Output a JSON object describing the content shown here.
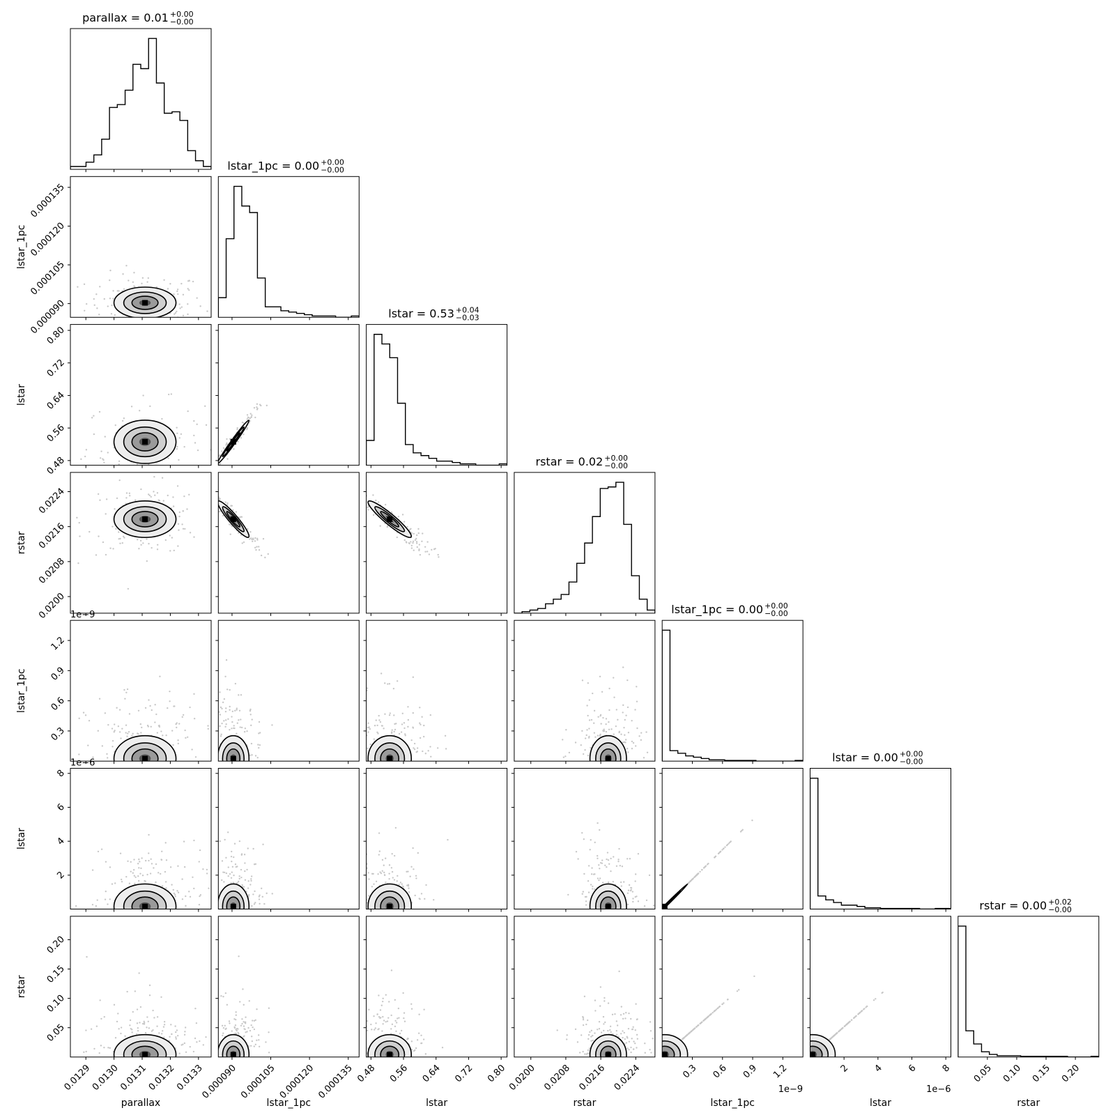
{
  "chart_data": {
    "type": "corner",
    "parameters": [
      "parallax",
      "lstar_1pc",
      "lstar",
      "rstar",
      "lstar_1pc",
      "lstar",
      "rstar"
    ],
    "titles": [
      {
        "name": "parallax",
        "value": "0.01",
        "plus": "+0.00",
        "minus": "−0.00"
      },
      {
        "name": "lstar_1pc",
        "value": "0.00",
        "plus": "+0.00",
        "minus": "−0.00"
      },
      {
        "name": "lstar",
        "value": "0.53",
        "plus": "+0.04",
        "minus": "−0.03"
      },
      {
        "name": "rstar",
        "value": "0.02",
        "plus": "+0.00",
        "minus": "−0.00"
      },
      {
        "name": "lstar_1pc",
        "value": "0.00",
        "plus": "+0.00",
        "minus": "−0.00"
      },
      {
        "name": "lstar",
        "value": "0.00",
        "plus": "+0.00",
        "minus": "−0.00"
      },
      {
        "name": "rstar",
        "value": "0.00",
        "plus": "+0.02",
        "minus": "−0.00"
      }
    ],
    "ranges": [
      [
        0.012845,
        0.013345
      ],
      [
        8.47e-05,
        0.0001392
      ],
      [
        0.4685,
        0.8145
      ],
      [
        0.01962,
        0.02284
      ],
      [
        0.0,
        1.4e-09
      ],
      [
        0.0,
        8.3e-06
      ],
      [
        0.0,
        0.24
      ]
    ],
    "ticks": [
      [
        0.0129,
        0.013,
        0.0131,
        0.0132,
        0.0133
      ],
      [
        9e-05,
        0.000105,
        0.00012,
        0.000135
      ],
      [
        0.48,
        0.56,
        0.64,
        0.72,
        0.8
      ],
      [
        0.02,
        0.0208,
        0.0216,
        0.0224
      ],
      [
        3e-10,
        6e-10,
        9e-10,
        1.2e-09
      ],
      [
        2e-06,
        4e-06,
        6e-06,
        8e-06
      ],
      [
        0.05,
        0.1,
        0.15,
        0.2
      ]
    ],
    "tick_labels": [
      [
        "0.0129",
        "0.0130",
        "0.0131",
        "0.0132",
        "0.0133"
      ],
      [
        "0.000090",
        "0.000105",
        "0.000120",
        "0.000135"
      ],
      [
        "0.48",
        "0.56",
        "0.64",
        "0.72",
        "0.80"
      ],
      [
        "0.0200",
        "0.0208",
        "0.0216",
        "0.0224"
      ],
      [
        "0.3",
        "0.6",
        "0.9",
        "1.2"
      ],
      [
        "2",
        "4",
        "6",
        "8"
      ],
      [
        "0.05",
        "0.10",
        "0.15",
        "0.20"
      ]
    ],
    "offset_texts": [
      "",
      "",
      "",
      "",
      "1e−9",
      "1e−6",
      ""
    ],
    "histograms": [
      [
        2,
        2,
        5,
        10,
        21,
        43,
        45,
        55,
        73,
        70,
        91,
        60,
        39,
        40,
        34,
        13,
        6,
        2
      ],
      [
        15,
        60,
        100,
        85,
        80,
        30,
        8,
        8,
        5,
        4,
        3,
        2,
        1,
        1,
        1,
        0,
        0,
        1
      ],
      [
        18,
        95,
        88,
        78,
        45,
        15,
        9,
        7,
        5,
        3,
        3,
        2,
        1,
        1,
        0,
        0,
        0,
        1
      ],
      [
        0,
        1,
        2,
        3,
        6,
        9,
        12,
        20,
        32,
        45,
        62,
        80,
        81,
        84,
        57,
        24,
        9,
        2
      ],
      [
        100,
        8,
        6,
        4,
        3,
        2,
        1,
        1,
        0.5,
        0.5,
        0.5,
        0.5,
        0,
        0,
        0,
        0,
        0,
        0.5
      ],
      [
        100,
        10,
        7,
        5,
        3,
        3,
        2,
        1,
        1,
        0.5,
        0.5,
        0.5,
        0.5,
        0.5,
        0,
        0,
        0.5,
        0.5
      ],
      [
        100,
        20,
        10,
        4,
        2,
        1,
        1,
        1,
        0.5,
        0.5,
        0.5,
        0.5,
        0.5,
        0.5,
        0,
        0,
        0,
        0.5
      ]
    ],
    "pairs": [
      {
        "row": 1,
        "col": 0,
        "cx": 0.01311,
        "cy": 9.03e-05,
        "sx": 5.8e-05,
        "sy": 3.2e-06,
        "rho": 0.0
      },
      {
        "row": 2,
        "col": 0,
        "cx": 0.01311,
        "cy": 0.526,
        "sx": 5.8e-05,
        "sy": 0.028,
        "rho": 0.0
      },
      {
        "row": 2,
        "col": 1,
        "cx": 9.05e-05,
        "cy": 0.526,
        "sx": 3.2e-06,
        "sy": 0.028,
        "rho": 0.985
      },
      {
        "row": 3,
        "col": 0,
        "cx": 0.01311,
        "cy": 0.02177,
        "sx": 5.8e-05,
        "sy": 0.00022,
        "rho": 0.0
      },
      {
        "row": 3,
        "col": 1,
        "cx": 9.05e-05,
        "cy": 0.02177,
        "sx": 3.2e-06,
        "sy": 0.00022,
        "rho": -0.93
      },
      {
        "row": 3,
        "col": 2,
        "cx": 0.526,
        "cy": 0.02177,
        "sx": 0.028,
        "sy": 0.00022,
        "rho": -0.93
      },
      {
        "row": 4,
        "col": 0,
        "cx": 0.01311,
        "cy": 2.5e-11,
        "sx": 5.8e-05,
        "sy": 1.2e-10,
        "rho": 0.0
      },
      {
        "row": 4,
        "col": 1,
        "cx": 9.05e-05,
        "cy": 2.5e-11,
        "sx": 3.2e-06,
        "sy": 1.2e-10,
        "rho": 0.0
      },
      {
        "row": 4,
        "col": 2,
        "cx": 0.526,
        "cy": 2.5e-11,
        "sx": 0.028,
        "sy": 1.2e-10,
        "rho": 0.0
      },
      {
        "row": 4,
        "col": 3,
        "cx": 0.02177,
        "cy": 2.5e-11,
        "sx": 0.00022,
        "sy": 1.2e-10,
        "rho": 0.0
      },
      {
        "row": 5,
        "col": 0,
        "cx": 0.01311,
        "cy": 1.5e-07,
        "sx": 5.8e-05,
        "sy": 7e-07,
        "rho": 0.0
      },
      {
        "row": 5,
        "col": 1,
        "cx": 9.05e-05,
        "cy": 1.5e-07,
        "sx": 3.2e-06,
        "sy": 7e-07,
        "rho": 0.0
      },
      {
        "row": 5,
        "col": 2,
        "cx": 0.526,
        "cy": 1.5e-07,
        "sx": 0.028,
        "sy": 7e-07,
        "rho": 0.0
      },
      {
        "row": 5,
        "col": 3,
        "cx": 0.02177,
        "cy": 1.5e-07,
        "sx": 0.00022,
        "sy": 7e-07,
        "rho": 0.0
      },
      {
        "row": 5,
        "col": 4,
        "cx": 2.5e-11,
        "cy": 1.5e-07,
        "sx": 1.2e-10,
        "sy": 7e-07,
        "rho": 0.999
      },
      {
        "row": 6,
        "col": 0,
        "cx": 0.01311,
        "cy": 0.004,
        "sx": 5.8e-05,
        "sy": 0.018,
        "rho": 0.0
      },
      {
        "row": 6,
        "col": 1,
        "cx": 9.05e-05,
        "cy": 0.004,
        "sx": 3.2e-06,
        "sy": 0.018,
        "rho": 0.0
      },
      {
        "row": 6,
        "col": 2,
        "cx": 0.526,
        "cy": 0.004,
        "sx": 0.028,
        "sy": 0.018,
        "rho": 0.0
      },
      {
        "row": 6,
        "col": 3,
        "cx": 0.02177,
        "cy": 0.004,
        "sx": 0.00022,
        "sy": 0.018,
        "rho": 0.0
      },
      {
        "row": 6,
        "col": 4,
        "cx": 2.5e-11,
        "cy": 0.004,
        "sx": 1.2e-10,
        "sy": 0.018,
        "rho": 0.0
      },
      {
        "row": 6,
        "col": 5,
        "cx": 1.5e-07,
        "cy": 0.004,
        "sx": 7e-07,
        "sy": 0.018,
        "rho": 0.0
      }
    ],
    "colors": {
      "line": "#000000",
      "scatter": "#c8c8c8",
      "frame": "#000000"
    }
  }
}
